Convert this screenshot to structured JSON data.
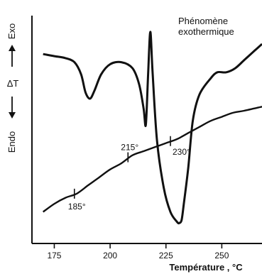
{
  "chart_data": {
    "type": "line",
    "xlabel": "Température , °C",
    "ylabel": "ΔT",
    "ylabel_top": "Exo",
    "ylabel_bottom": "Endo",
    "x_ticks": [
      "175",
      "200",
      "225",
      "250"
    ],
    "xlim": [
      165,
      268
    ],
    "ylim": [
      0,
      1
    ],
    "grid": false,
    "annotation": "Phénomène\nexothermique",
    "curve_labels": [
      "185°",
      "215°",
      "230°"
    ],
    "series": [
      {
        "role": "dta-curve",
        "x": [
          170,
          175,
          180,
          184,
          187,
          189,
          191,
          193,
          196,
          200,
          205,
          210,
          213,
          215,
          216,
          217,
          218,
          219,
          221,
          224,
          227,
          230,
          231,
          232,
          233,
          235,
          237,
          240,
          245,
          248,
          252,
          256,
          260,
          264,
          268
        ],
        "y": [
          0.88,
          0.87,
          0.86,
          0.84,
          0.78,
          0.69,
          0.66,
          0.7,
          0.78,
          0.83,
          0.84,
          0.81,
          0.73,
          0.61,
          0.53,
          0.78,
          0.99,
          0.79,
          0.45,
          0.22,
          0.1,
          0.05,
          0.045,
          0.06,
          0.14,
          0.32,
          0.55,
          0.68,
          0.76,
          0.79,
          0.79,
          0.81,
          0.85,
          0.89,
          0.93
        ]
      },
      {
        "role": "baseline",
        "x": [
          170,
          175,
          180,
          185,
          190,
          195,
          200,
          205,
          210,
          215,
          220,
          225,
          230,
          235,
          240,
          245,
          250,
          255,
          260,
          268
        ],
        "y": [
          0.1,
          0.14,
          0.17,
          0.19,
          0.23,
          0.27,
          0.31,
          0.34,
          0.38,
          0.4,
          0.42,
          0.44,
          0.46,
          0.49,
          0.52,
          0.55,
          0.57,
          0.59,
          0.6,
          0.62
        ]
      }
    ],
    "markers": [
      {
        "label": "185°",
        "x": 184,
        "y": 0.19
      },
      {
        "label": "215°",
        "x": 208,
        "y": 0.37
      },
      {
        "label": "230°",
        "x": 227,
        "y": 0.45
      }
    ]
  }
}
